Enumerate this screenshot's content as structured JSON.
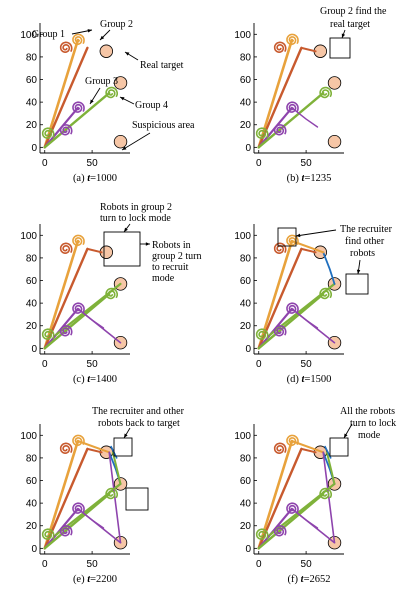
{
  "colors": {
    "group1": "#e8a23c",
    "group2": "#c85a2e",
    "group3": "#8e44ad",
    "group4": "#7fb23a",
    "target_fill": "#f6c6a6",
    "recruit_line": "#1f6fbf",
    "axis": "#000000"
  },
  "axes": {
    "x_ticks": [
      "0",
      "50"
    ],
    "y_ticks": [
      "0",
      "20",
      "40",
      "60",
      "80",
      "100"
    ]
  },
  "panels": [
    {
      "caption_prefix": "(a) ",
      "caption_t": "t",
      "caption_suffix": "=1000",
      "annotations": [
        "Group 1",
        "Group 2",
        "Real target",
        "Group 3",
        "Group 4",
        "Suspicious area"
      ]
    },
    {
      "caption_prefix": "(b) ",
      "caption_t": "t",
      "caption_suffix": "=1235",
      "annotations": [
        "Group 2 find the",
        "real target"
      ]
    },
    {
      "caption_prefix": "(c) ",
      "caption_t": "t",
      "caption_suffix": "=1400",
      "annotations": [
        "Robots in group 2",
        "turn to lock mode",
        "Robots in",
        "group 2 turn",
        "to recruit",
        "mode"
      ]
    },
    {
      "caption_prefix": "(d) ",
      "caption_t": "t",
      "caption_suffix": "=1500",
      "annotations": [
        "The recruiter",
        "find other",
        "robots"
      ]
    },
    {
      "caption_prefix": "(e) ",
      "caption_t": "t",
      "caption_suffix": "=2200",
      "annotations": [
        "The recruiter and other",
        "robots back to target"
      ]
    },
    {
      "caption_prefix": "(f) ",
      "caption_t": "t",
      "caption_suffix": "=2652",
      "annotations": [
        "All the robots",
        "turn to lock",
        "mode"
      ]
    }
  ]
}
